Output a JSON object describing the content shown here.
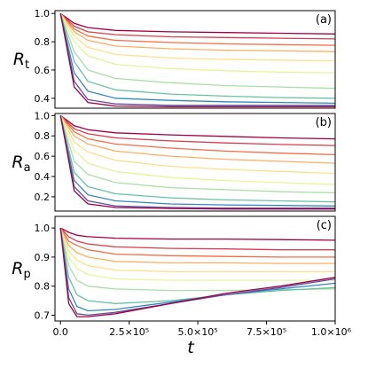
{
  "chart_data": {
    "type": "line",
    "x_axis": {
      "label": "t",
      "range": [
        -20000,
        1000000
      ],
      "ticks": [
        0,
        250000,
        500000,
        750000,
        1000000
      ],
      "tick_labels": [
        "0.0",
        "2.5×10⁵",
        "5.0×10⁵",
        "7.5×10⁵",
        "1.0×10⁶"
      ]
    },
    "palette": [
      "#9e0142",
      "#d53e4f",
      "#f46d43",
      "#fdae61",
      "#fee08b",
      "#e6f598",
      "#abdda4",
      "#66c2a5",
      "#3288bd",
      "#5e4fa2"
    ],
    "panels": [
      {
        "tag": "(a)",
        "ylabel_main": "R",
        "ylabel_sub": "t",
        "ylim": [
          0.33,
          1.02
        ],
        "yticks": [
          0.4,
          0.6,
          0.8,
          1.0
        ],
        "ytick_labels": [
          "0.4",
          "0.6",
          "0.8",
          "1.0"
        ],
        "series": [
          {
            "x": [
              0,
              50000,
              100000,
              200000,
              400000,
              600000,
              800000,
              1000000
            ],
            "y": [
              1.0,
              0.93,
              0.9,
              0.88,
              0.87,
              0.865,
              0.86,
              0.855
            ]
          },
          {
            "x": [
              0,
              50000,
              100000,
              200000,
              400000,
              600000,
              800000,
              1000000
            ],
            "y": [
              1.0,
              0.91,
              0.87,
              0.85,
              0.835,
              0.83,
              0.825,
              0.82
            ]
          },
          {
            "x": [
              0,
              50000,
              100000,
              200000,
              400000,
              600000,
              800000,
              1000000
            ],
            "y": [
              1.0,
              0.89,
              0.84,
              0.81,
              0.795,
              0.785,
              0.78,
              0.775
            ]
          },
          {
            "x": [
              0,
              50000,
              100000,
              200000,
              400000,
              600000,
              800000,
              1000000
            ],
            "y": [
              1.0,
              0.87,
              0.81,
              0.77,
              0.75,
              0.74,
              0.735,
              0.73
            ]
          },
          {
            "x": [
              0,
              50000,
              100000,
              200000,
              400000,
              600000,
              800000,
              1000000
            ],
            "y": [
              1.0,
              0.84,
              0.76,
              0.71,
              0.685,
              0.675,
              0.67,
              0.665
            ]
          },
          {
            "x": [
              0,
              50000,
              100000,
              200000,
              400000,
              600000,
              800000,
              1000000
            ],
            "y": [
              1.0,
              0.8,
              0.7,
              0.64,
              0.61,
              0.595,
              0.585,
              0.58
            ]
          },
          {
            "x": [
              0,
              50000,
              100000,
              200000,
              400000,
              600000,
              800000,
              1000000
            ],
            "y": [
              1.0,
              0.73,
              0.6,
              0.54,
              0.51,
              0.49,
              0.48,
              0.47
            ]
          },
          {
            "x": [
              0,
              50000,
              100000,
              200000,
              400000,
              600000,
              800000,
              1000000
            ],
            "y": [
              1.0,
              0.66,
              0.52,
              0.46,
              0.43,
              0.415,
              0.405,
              0.4
            ]
          },
          {
            "x": [
              0,
              50000,
              100000,
              200000,
              400000,
              600000,
              800000,
              1000000
            ],
            "y": [
              1.0,
              0.58,
              0.45,
              0.4,
              0.385,
              0.375,
              0.37,
              0.365
            ]
          },
          {
            "x": [
              0,
              50000,
              100000,
              200000,
              400000,
              600000,
              800000,
              1000000
            ],
            "y": [
              1.0,
              0.52,
              0.39,
              0.36,
              0.35,
              0.35,
              0.35,
              0.35
            ]
          },
          {
            "x": [
              0,
              50000,
              100000,
              200000,
              400000,
              600000,
              800000,
              1000000
            ],
            "y": [
              1.0,
              0.48,
              0.37,
              0.345,
              0.34,
              0.34,
              0.34,
              0.34
            ]
          }
        ]
      },
      {
        "tag": "(b)",
        "ylabel_main": "R",
        "ylabel_sub": "a",
        "ylim": [
          0.06,
          1.02
        ],
        "yticks": [
          0.2,
          0.4,
          0.6,
          0.8,
          1.0
        ],
        "ytick_labels": [
          "0.2",
          "0.4",
          "0.6",
          "0.8",
          "1.0"
        ],
        "series": [
          {
            "x": [
              0,
              50000,
              100000,
              200000,
              400000,
              600000,
              800000,
              1000000
            ],
            "y": [
              1.0,
              0.9,
              0.86,
              0.83,
              0.81,
              0.795,
              0.78,
              0.77
            ]
          },
          {
            "x": [
              0,
              50000,
              100000,
              200000,
              400000,
              600000,
              800000,
              1000000
            ],
            "y": [
              1.0,
              0.87,
              0.82,
              0.78,
              0.75,
              0.73,
              0.715,
              0.705
            ]
          },
          {
            "x": [
              0,
              50000,
              100000,
              200000,
              400000,
              600000,
              800000,
              1000000
            ],
            "y": [
              1.0,
              0.84,
              0.77,
              0.72,
              0.68,
              0.65,
              0.63,
              0.615
            ]
          },
          {
            "x": [
              0,
              50000,
              100000,
              200000,
              400000,
              600000,
              800000,
              1000000
            ],
            "y": [
              1.0,
              0.8,
              0.72,
              0.65,
              0.6,
              0.57,
              0.55,
              0.53
            ]
          },
          {
            "x": [
              0,
              50000,
              100000,
              200000,
              400000,
              600000,
              800000,
              1000000
            ],
            "y": [
              1.0,
              0.74,
              0.64,
              0.56,
              0.5,
              0.47,
              0.45,
              0.43
            ]
          },
          {
            "x": [
              0,
              50000,
              100000,
              200000,
              400000,
              600000,
              800000,
              1000000
            ],
            "y": [
              1.0,
              0.66,
              0.53,
              0.45,
              0.39,
              0.36,
              0.34,
              0.32
            ]
          },
          {
            "x": [
              0,
              50000,
              100000,
              200000,
              400000,
              600000,
              800000,
              1000000
            ],
            "y": [
              1.0,
              0.55,
              0.42,
              0.34,
              0.29,
              0.27,
              0.25,
              0.24
            ]
          },
          {
            "x": [
              0,
              50000,
              100000,
              200000,
              400000,
              600000,
              800000,
              1000000
            ],
            "y": [
              1.0,
              0.44,
              0.3,
              0.23,
              0.19,
              0.17,
              0.16,
              0.15
            ]
          },
          {
            "x": [
              0,
              50000,
              100000,
              200000,
              400000,
              600000,
              800000,
              1000000
            ],
            "y": [
              1.0,
              0.36,
              0.22,
              0.16,
              0.13,
              0.12,
              0.115,
              0.11
            ]
          },
          {
            "x": [
              0,
              50000,
              100000,
              200000,
              400000,
              600000,
              800000,
              1000000
            ],
            "y": [
              1.0,
              0.3,
              0.16,
              0.11,
              0.095,
              0.09,
              0.09,
              0.09
            ]
          },
          {
            "x": [
              0,
              50000,
              100000,
              200000,
              400000,
              600000,
              800000,
              1000000
            ],
            "y": [
              1.0,
              0.26,
              0.13,
              0.095,
              0.085,
              0.08,
              0.08,
              0.08
            ]
          }
        ]
      },
      {
        "tag": "(c)",
        "ylabel_main": "R",
        "ylabel_sub": "p",
        "ylim": [
          0.68,
          1.04
        ],
        "yticks": [
          0.7,
          0.8,
          0.9,
          1.0
        ],
        "ytick_labels": [
          "0.7",
          "0.8",
          "0.9",
          "1.0"
        ],
        "series": [
          {
            "x": [
              0,
              30000,
              60000,
              100000,
              200000,
              400000,
              600000,
              800000,
              1000000
            ],
            "y": [
              1.0,
              0.985,
              0.975,
              0.97,
              0.965,
              0.962,
              0.962,
              0.96,
              0.958
            ]
          },
          {
            "x": [
              0,
              30000,
              60000,
              100000,
              200000,
              400000,
              600000,
              800000,
              1000000
            ],
            "y": [
              1.0,
              0.97,
              0.955,
              0.945,
              0.935,
              0.93,
              0.928,
              0.925,
              0.925
            ]
          },
          {
            "x": [
              0,
              30000,
              60000,
              100000,
              200000,
              400000,
              600000,
              800000,
              1000000
            ],
            "y": [
              1.0,
              0.955,
              0.94,
              0.925,
              0.91,
              0.905,
              0.902,
              0.9,
              0.9
            ]
          },
          {
            "x": [
              0,
              30000,
              60000,
              100000,
              200000,
              400000,
              600000,
              800000,
              1000000
            ],
            "y": [
              1.0,
              0.94,
              0.915,
              0.9,
              0.885,
              0.88,
              0.88,
              0.878,
              0.878
            ]
          },
          {
            "x": [
              0,
              30000,
              60000,
              100000,
              200000,
              400000,
              600000,
              800000,
              1000000
            ],
            "y": [
              1.0,
              0.92,
              0.89,
              0.87,
              0.855,
              0.85,
              0.85,
              0.85,
              0.85
            ]
          },
          {
            "x": [
              0,
              30000,
              60000,
              100000,
              200000,
              400000,
              600000,
              800000,
              1000000
            ],
            "y": [
              1.0,
              0.9,
              0.86,
              0.84,
              0.825,
              0.82,
              0.82,
              0.82,
              0.82
            ]
          },
          {
            "x": [
              0,
              30000,
              60000,
              100000,
              200000,
              400000,
              600000,
              800000,
              1000000
            ],
            "y": [
              1.0,
              0.87,
              0.82,
              0.8,
              0.79,
              0.785,
              0.785,
              0.788,
              0.79
            ]
          },
          {
            "x": [
              0,
              30000,
              60000,
              100000,
              200000,
              400000,
              600000,
              800000,
              1000000
            ],
            "y": [
              1.0,
              0.83,
              0.77,
              0.75,
              0.74,
              0.75,
              0.77,
              0.785,
              0.795
            ]
          },
          {
            "x": [
              0,
              30000,
              60000,
              100000,
              200000,
              400000,
              600000,
              800000,
              1000000
            ],
            "y": [
              1.0,
              0.79,
              0.73,
              0.715,
              0.72,
              0.745,
              0.77,
              0.79,
              0.81
            ]
          },
          {
            "x": [
              0,
              30000,
              60000,
              100000,
              200000,
              400000,
              600000,
              800000,
              1000000
            ],
            "y": [
              1.0,
              0.76,
              0.705,
              0.7,
              0.71,
              0.74,
              0.77,
              0.795,
              0.825
            ]
          },
          {
            "x": [
              0,
              30000,
              60000,
              100000,
              200000,
              400000,
              600000,
              800000,
              1000000
            ],
            "y": [
              1.0,
              0.74,
              0.695,
              0.695,
              0.705,
              0.74,
              0.775,
              0.8,
              0.83
            ]
          }
        ]
      }
    ]
  }
}
